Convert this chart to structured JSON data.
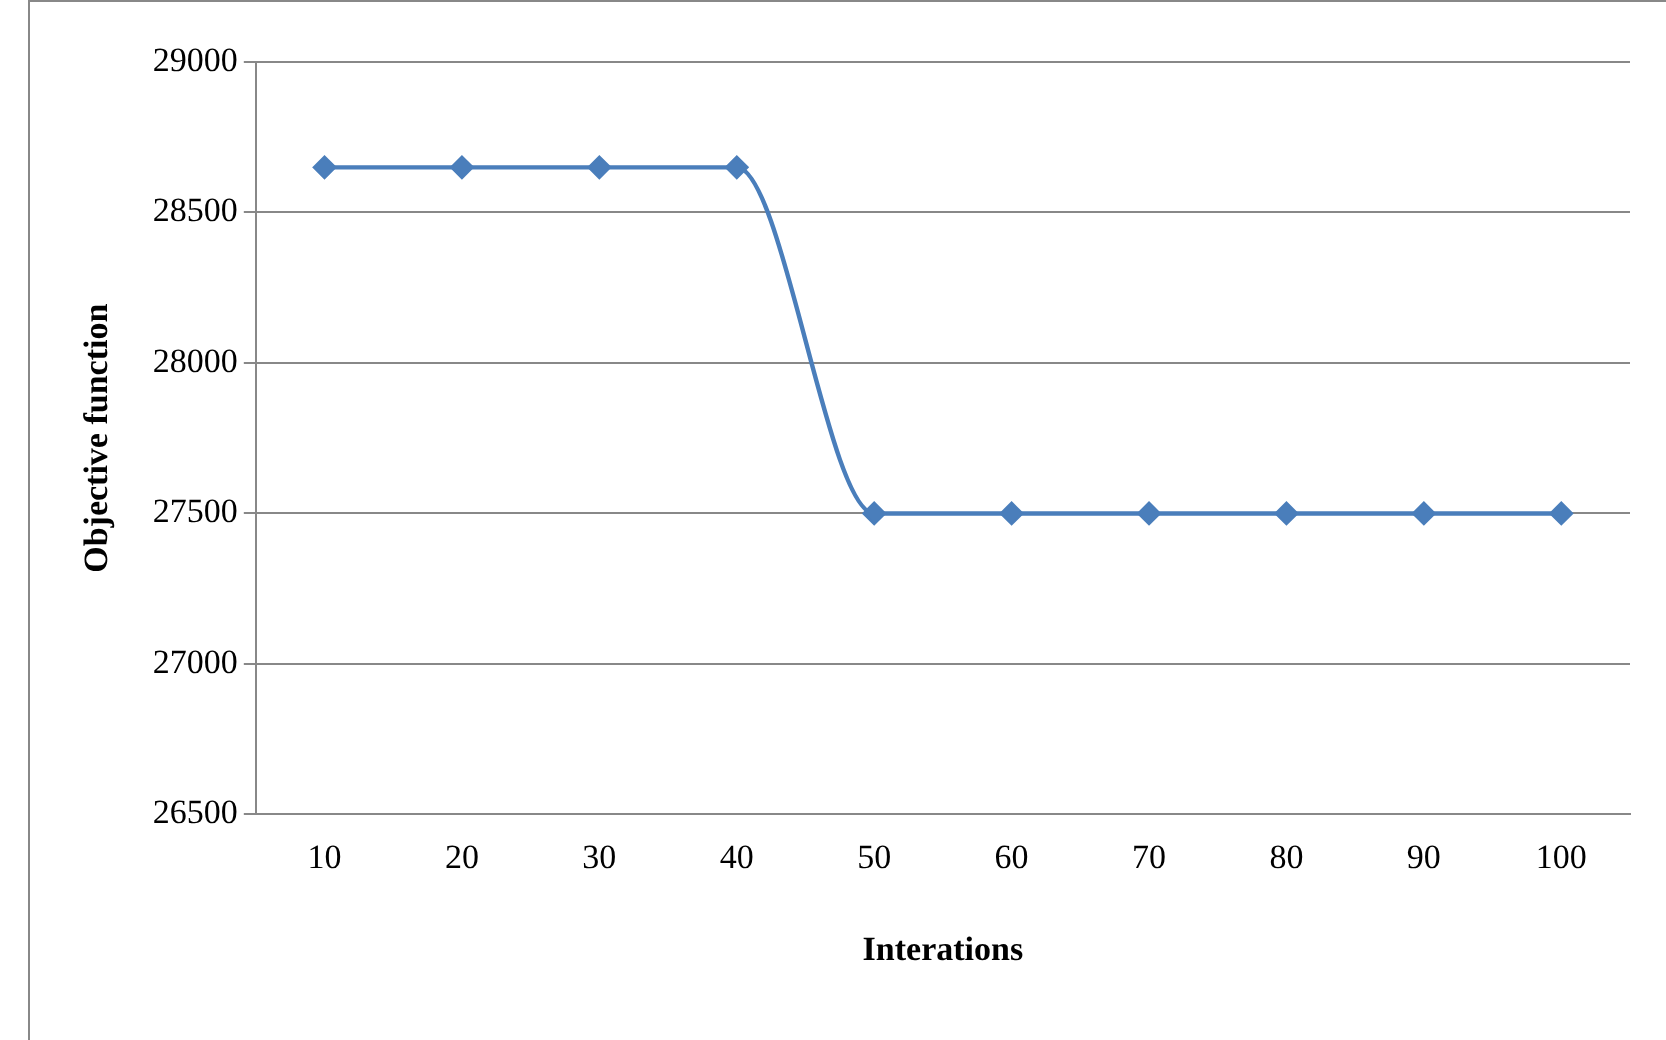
{
  "chart_data": {
    "type": "line",
    "xlabel": "Interations",
    "ylabel": "Objective function",
    "categories": [
      "10",
      "20",
      "30",
      "40",
      "50",
      "60",
      "70",
      "80",
      "90",
      "100"
    ],
    "series": [
      {
        "color": "#4a7ebb",
        "values": [
          28650,
          28650,
          28650,
          28650,
          27500,
          27500,
          27500,
          27500,
          27500,
          27500
        ]
      }
    ],
    "ylim": [
      26500,
      29000
    ],
    "yticks": [
      26500,
      27000,
      27500,
      28000,
      28500,
      29000
    ],
    "grid": "y",
    "legend": false,
    "marker": "diamond",
    "line_style": "solid"
  }
}
